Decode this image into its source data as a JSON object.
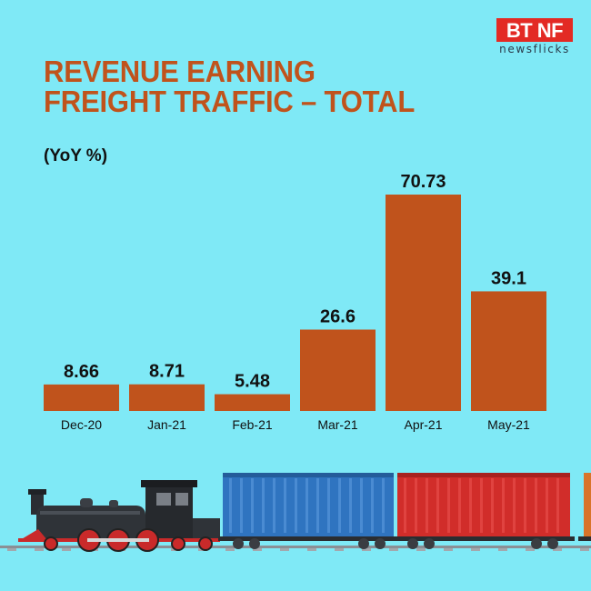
{
  "logo": {
    "mark": "BT NF",
    "sub": "newsflicks"
  },
  "title_lines": [
    "REVENUE EARNING",
    "FREIGHT TRAFFIC – TOTAL"
  ],
  "unit_label": "(YoY %)",
  "colors": {
    "background": "#7fe9f6",
    "bar": "#c0531c",
    "title": "#c0531c"
  },
  "chart_data": {
    "type": "bar",
    "title": "REVENUE EARNING FREIGHT TRAFFIC – TOTAL",
    "ylabel": "(YoY %)",
    "xlabel": "",
    "categories": [
      "Dec-20",
      "Jan-21",
      "Feb-21",
      "Mar-21",
      "Apr-21",
      "May-21"
    ],
    "values": [
      8.66,
      8.71,
      5.48,
      26.6,
      70.73,
      39.1
    ],
    "value_labels": [
      "8.66",
      "8.71",
      "5.48",
      "26.6",
      "70.73",
      "39.1"
    ],
    "ylim": [
      0,
      72
    ],
    "grid": false,
    "legend": "none"
  },
  "illustration": {
    "name": "freight-train-illustration"
  }
}
